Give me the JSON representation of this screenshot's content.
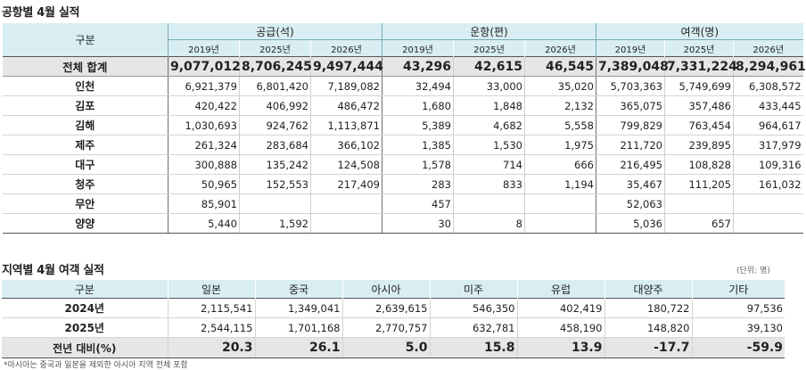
{
  "airport": {
    "title": "공항별 4월 실적",
    "label_header": "구분",
    "groups": [
      {
        "name": "공급(석)",
        "years": [
          "2019년",
          "2025년",
          "2026년"
        ]
      },
      {
        "name": "운항(편)",
        "years": [
          "2019년",
          "2025년",
          "2026년"
        ]
      },
      {
        "name": "여객(명)",
        "years": [
          "2019년",
          "2025년",
          "2026년"
        ]
      }
    ],
    "rows": [
      {
        "name": "전체 합계",
        "values": [
          "9,077,012",
          "8,706,245",
          "9,497,444",
          "43,296",
          "42,615",
          "46,545",
          "7,389,048",
          "7,331,224",
          "8,294,961"
        ]
      },
      {
        "name": "인천",
        "values": [
          "6,921,379",
          "6,801,420",
          "7,189,082",
          "32,494",
          "33,000",
          "35,020",
          "5,703,363",
          "5,749,699",
          "6,308,572"
        ]
      },
      {
        "name": "김포",
        "values": [
          "420,422",
          "406,992",
          "486,472",
          "1,680",
          "1,848",
          "2,132",
          "365,075",
          "357,486",
          "433,445"
        ]
      },
      {
        "name": "김해",
        "values": [
          "1,030,693",
          "924,762",
          "1,113,871",
          "5,389",
          "4,682",
          "5,558",
          "799,829",
          "763,454",
          "964,617"
        ]
      },
      {
        "name": "제주",
        "values": [
          "261,324",
          "283,684",
          "366,102",
          "1,385",
          "1,530",
          "1,975",
          "211,720",
          "239,895",
          "317,979"
        ]
      },
      {
        "name": "대구",
        "values": [
          "300,888",
          "135,242",
          "124,508",
          "1,578",
          "714",
          "666",
          "216,495",
          "108,828",
          "109,316"
        ]
      },
      {
        "name": "청주",
        "values": [
          "50,965",
          "152,553",
          "217,409",
          "283",
          "833",
          "1,194",
          "35,467",
          "111,205",
          "161,032"
        ]
      },
      {
        "name": "무안",
        "values": [
          "85,901",
          "",
          "",
          "457",
          "",
          "",
          "52,063",
          "",
          ""
        ]
      },
      {
        "name": "양양",
        "values": [
          "5,440",
          "1,592",
          "",
          "30",
          "8",
          "",
          "5,036",
          "657",
          ""
        ]
      }
    ]
  },
  "region": {
    "title": "지역별 4월 여객 실적",
    "unit": "(단위: 명)",
    "label_header": "구분",
    "columns": [
      "일본",
      "중국",
      "아시아",
      "미주",
      "유럽",
      "대양주",
      "기타"
    ],
    "rows": [
      {
        "name": "2024년",
        "values": [
          "2,115,541",
          "1,349,041",
          "2,639,615",
          "546,350",
          "402,419",
          "180,722",
          "97,536"
        ]
      },
      {
        "name": "2025년",
        "values": [
          "2,544,115",
          "1,701,168",
          "2,770,757",
          "632,781",
          "458,190",
          "148,820",
          "39,130"
        ]
      },
      {
        "name": "전년 대비(%)",
        "values": [
          "20.3",
          "26.1",
          "5.0",
          "15.8",
          "13.9",
          "-17.7",
          "-59.9"
        ]
      }
    ],
    "footnote": "*아시아는 중국과 일본을 제외한 아시아 지역 전체 포함"
  }
}
